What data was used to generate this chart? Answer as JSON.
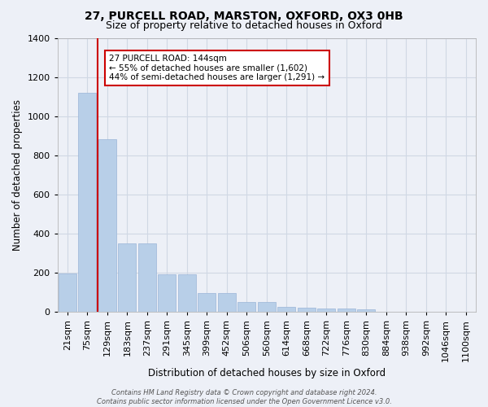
{
  "title1": "27, PURCELL ROAD, MARSTON, OXFORD, OX3 0HB",
  "title2": "Size of property relative to detached houses in Oxford",
  "xlabel": "Distribution of detached houses by size in Oxford",
  "ylabel": "Number of detached properties",
  "categories": [
    "21sqm",
    "75sqm",
    "129sqm",
    "183sqm",
    "237sqm",
    "291sqm",
    "345sqm",
    "399sqm",
    "452sqm",
    "506sqm",
    "560sqm",
    "614sqm",
    "668sqm",
    "722sqm",
    "776sqm",
    "830sqm",
    "884sqm",
    "938sqm",
    "992sqm",
    "1046sqm",
    "1100sqm"
  ],
  "values": [
    195,
    1120,
    880,
    350,
    350,
    190,
    190,
    95,
    95,
    50,
    50,
    25,
    18,
    15,
    15,
    10,
    0,
    0,
    0,
    0,
    0
  ],
  "bar_color": "#b8cfe8",
  "bar_edge_color": "#9ab5d8",
  "grid_color": "#d0d8e4",
  "bg_color": "#edf0f7",
  "vline_x": 1.5,
  "vline_color": "#cc0000",
  "annotation_text": "27 PURCELL ROAD: 144sqm\n← 55% of detached houses are smaller (1,602)\n44% of semi-detached houses are larger (1,291) →",
  "annotation_box_facecolor": "#ffffff",
  "annotation_box_edge": "#cc0000",
  "ylim": [
    0,
    1400
  ],
  "yticks": [
    0,
    200,
    400,
    600,
    800,
    1000,
    1200,
    1400
  ],
  "footer": "Contains HM Land Registry data © Crown copyright and database right 2024.\nContains public sector information licensed under the Open Government Licence v3.0.",
  "title1_fontsize": 10,
  "title2_fontsize": 9,
  "xlabel_fontsize": 8.5,
  "ylabel_fontsize": 8.5,
  "tick_fontsize": 8,
  "annot_fontsize": 7.5
}
